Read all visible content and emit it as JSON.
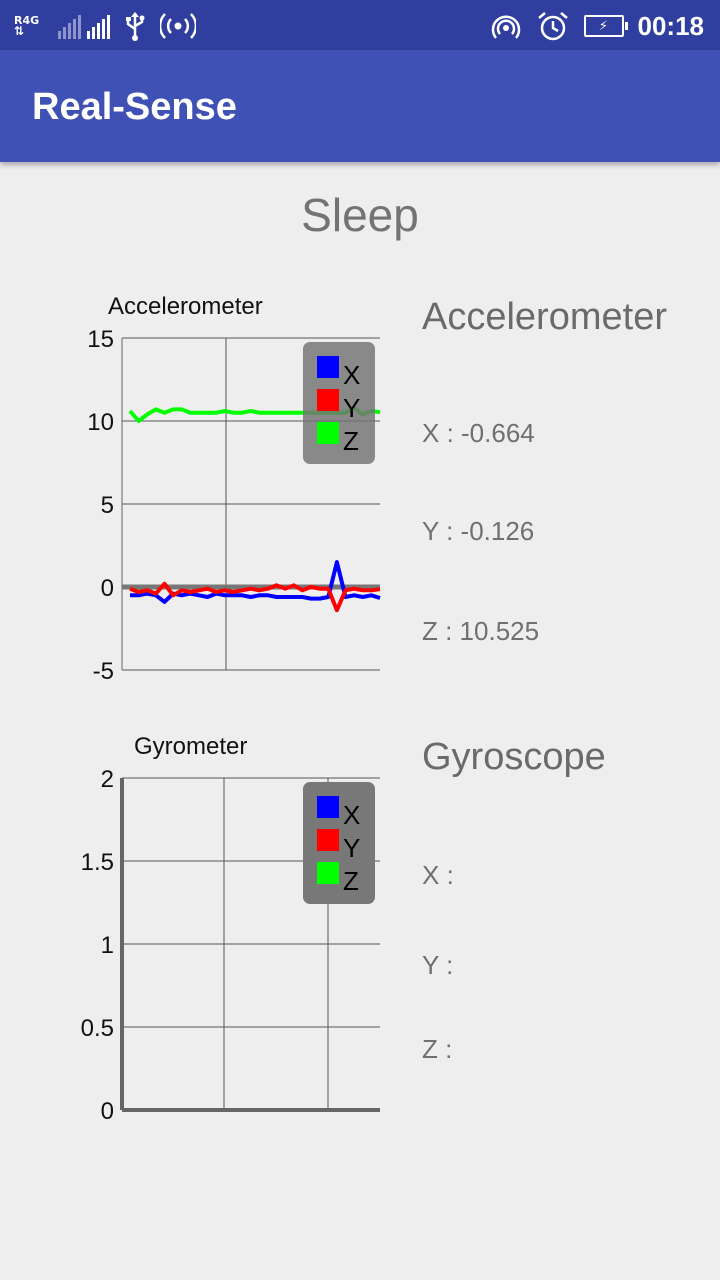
{
  "status_bar": {
    "network_type": "R4G",
    "time": "00:18",
    "icons": [
      "data-arrows-icon",
      "signal-bars-icon",
      "usb-icon",
      "hotspot-icon",
      "wifi-hotspot-icon",
      "alarm-icon",
      "battery-charging-icon"
    ]
  },
  "app_bar": {
    "title": "Real-Sense"
  },
  "mode_label": "Sleep",
  "accelerometer_chart": {
    "title": "Accelerometer",
    "y_ticks": [
      "15",
      "10",
      "5",
      "0",
      "-5"
    ],
    "legend": [
      "X",
      "Y",
      "Z"
    ]
  },
  "gyrometer_chart": {
    "title": "Gyrometer",
    "y_ticks": [
      "2",
      "1.5",
      "1",
      "0.5",
      "0"
    ],
    "legend": [
      "X",
      "Y",
      "Z"
    ]
  },
  "accelerometer_readout": {
    "heading": "Accelerometer",
    "x": "X : -0.664",
    "y": "Y : -0.126",
    "z": "Z : 10.525"
  },
  "gyroscope_readout": {
    "heading": "Gyroscope",
    "x": "X :",
    "y": "Y :",
    "z": "Z :"
  },
  "colors": {
    "x": "#0000ff",
    "y": "#ff0000",
    "z": "#00ff00",
    "status_bar": "#303f9f",
    "app_bar": "#3f51b5"
  },
  "chart_data": [
    {
      "type": "line",
      "title": "Accelerometer",
      "ylim": [
        -5,
        15
      ],
      "legend_position": "top-right",
      "grid": true,
      "x": [
        0,
        1,
        2,
        3,
        4,
        5,
        6,
        7,
        8,
        9,
        10,
        11,
        12,
        13,
        14,
        15,
        16,
        17,
        18,
        19,
        20,
        21,
        22,
        23,
        24,
        25,
        26,
        27,
        28,
        29
      ],
      "series": [
        {
          "name": "X",
          "color": "#0000ff",
          "values": [
            -0.5,
            -0.5,
            -0.4,
            -0.5,
            -0.9,
            -0.4,
            -0.5,
            -0.4,
            -0.5,
            -0.6,
            -0.4,
            -0.5,
            -0.5,
            -0.5,
            -0.6,
            -0.5,
            -0.5,
            -0.6,
            -0.6,
            -0.6,
            -0.6,
            -0.7,
            -0.7,
            -0.6,
            1.5,
            -0.6,
            -0.5,
            -0.6,
            -0.5,
            -0.66
          ]
        },
        {
          "name": "Y",
          "color": "#ff0000",
          "values": [
            -0.1,
            -0.3,
            -0.2,
            -0.4,
            0.2,
            -0.5,
            -0.2,
            -0.3,
            -0.2,
            -0.1,
            -0.3,
            -0.2,
            -0.3,
            -0.2,
            -0.1,
            -0.2,
            -0.1,
            0.1,
            -0.1,
            0.1,
            -0.2,
            0.0,
            -0.1,
            -0.1,
            -1.4,
            -0.2,
            -0.1,
            -0.2,
            -0.2,
            -0.13
          ]
        },
        {
          "name": "Z",
          "color": "#00ff00",
          "values": [
            10.6,
            10.0,
            10.4,
            10.7,
            10.5,
            10.7,
            10.7,
            10.5,
            10.5,
            10.5,
            10.5,
            10.6,
            10.5,
            10.5,
            10.6,
            10.5,
            10.5,
            10.5,
            10.5,
            10.5,
            10.5,
            10.5,
            10.5,
            10.5,
            10.5,
            10.5,
            10.8,
            10.4,
            10.6,
            10.53
          ]
        }
      ]
    },
    {
      "type": "line",
      "title": "Gyrometer",
      "ylim": [
        0,
        2
      ],
      "legend_position": "top-right",
      "grid": true,
      "x": [],
      "series": [
        {
          "name": "X",
          "color": "#0000ff",
          "values": []
        },
        {
          "name": "Y",
          "color": "#ff0000",
          "values": []
        },
        {
          "name": "Z",
          "color": "#00ff00",
          "values": []
        }
      ]
    }
  ]
}
